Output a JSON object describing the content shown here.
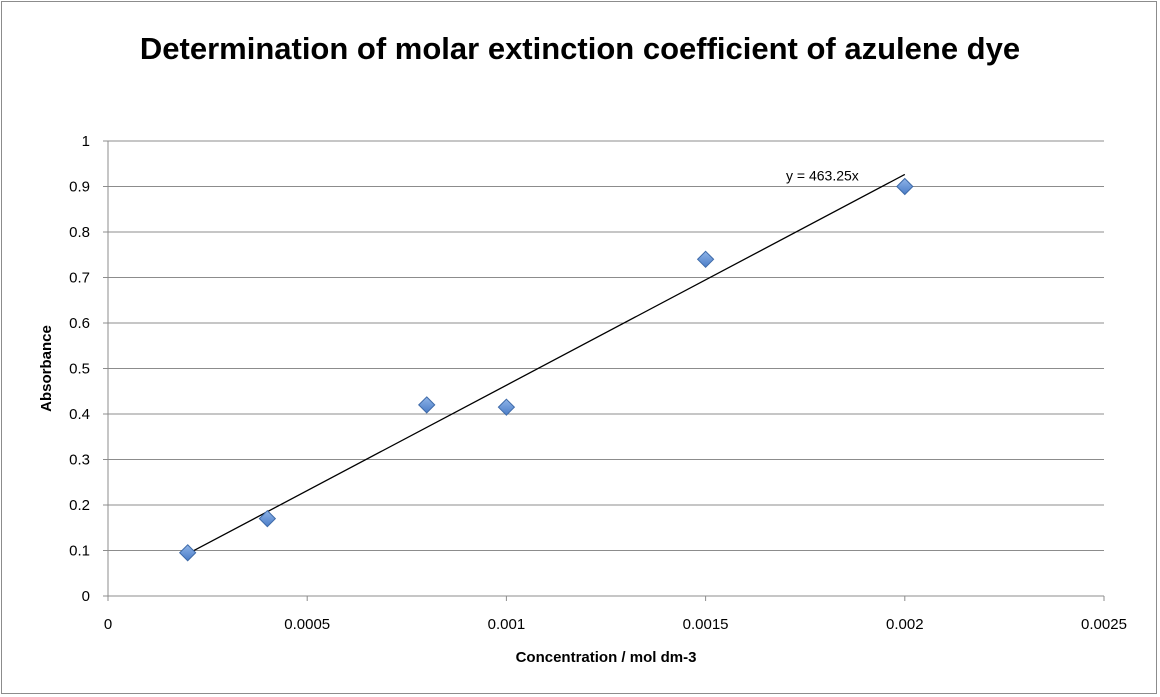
{
  "chart_data": {
    "type": "scatter",
    "title": "Determination of molar extinction coefficient of azulene dye",
    "xlabel": "Concentration / mol dm-3",
    "ylabel": "Absorbance",
    "xlim": [
      0,
      0.0025
    ],
    "ylim": [
      0,
      1
    ],
    "x_ticks": [
      "0",
      "0.0005",
      "0.001",
      "0.0015",
      "0.002",
      "0.0025"
    ],
    "y_ticks": [
      "0",
      "0.1",
      "0.2",
      "0.3",
      "0.4",
      "0.5",
      "0.6",
      "0.7",
      "0.8",
      "0.9",
      "1"
    ],
    "grid": "horizontal",
    "legend": "none",
    "series": [
      {
        "marker": "diamond",
        "color": "#4f81bd",
        "x": [
          0.0002,
          0.0004,
          0.0008,
          0.001,
          0.0015,
          0.002
        ],
        "y": [
          0.095,
          0.17,
          0.42,
          0.415,
          0.74,
          0.9
        ]
      }
    ],
    "trendline": {
      "slope": 463.25,
      "intercept": 0,
      "x_range": [
        0.0002,
        0.002
      ],
      "label": "y = 463.25x",
      "color": "#000000"
    }
  }
}
